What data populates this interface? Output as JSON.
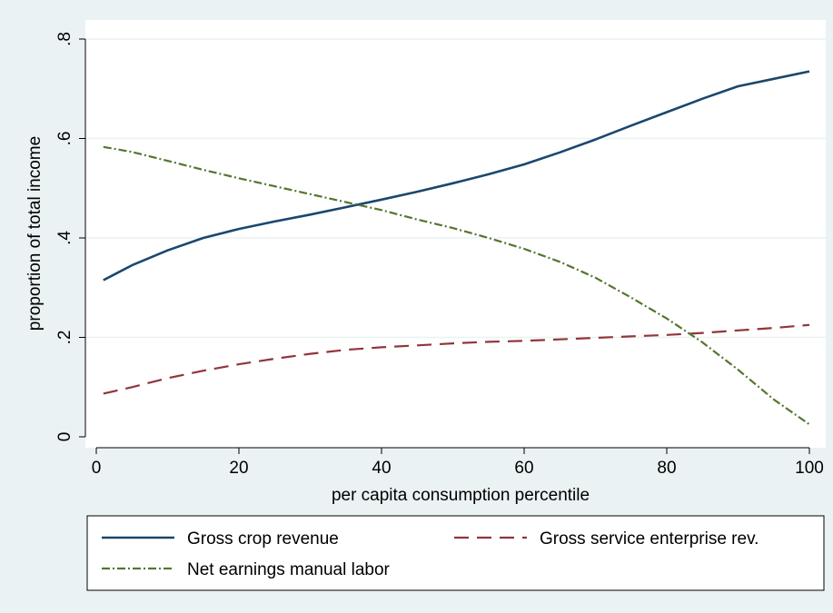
{
  "chart_data": {
    "type": "line",
    "title": "",
    "xlabel": "per capita consumption percentile",
    "ylabel": "proportion of total income",
    "xlim": [
      0,
      100
    ],
    "ylim": [
      0,
      0.8
    ],
    "xticks": [
      0,
      20,
      40,
      60,
      80,
      100
    ],
    "xtick_labels": [
      "0",
      "20",
      "40",
      "60",
      "80",
      "100"
    ],
    "yticks": [
      0,
      0.2,
      0.4,
      0.6,
      0.8
    ],
    "ytick_labels": [
      "0",
      ".2",
      ".4",
      ".6",
      ".8"
    ],
    "grid": true,
    "legend_position": "bottom",
    "colors": {
      "background_outer": "#eaf2f3",
      "plot_background": "#ffffff",
      "grid": "#eaf2f3"
    },
    "series": [
      {
        "name": "Gross crop revenue",
        "color": "#1a476f",
        "dash": "solid",
        "x": [
          1,
          5,
          10,
          15,
          20,
          25,
          30,
          35,
          40,
          45,
          50,
          55,
          60,
          65,
          70,
          75,
          80,
          85,
          90,
          95,
          100
        ],
        "y": [
          0.315,
          0.345,
          0.375,
          0.4,
          0.418,
          0.433,
          0.447,
          0.462,
          0.477,
          0.493,
          0.51,
          0.528,
          0.548,
          0.572,
          0.598,
          0.626,
          0.653,
          0.68,
          0.705,
          0.72,
          0.735
        ]
      },
      {
        "name": "Gross service enterprise rev.",
        "color": "#90353b",
        "dash": "dash",
        "x": [
          1,
          5,
          10,
          15,
          20,
          25,
          30,
          35,
          40,
          45,
          50,
          55,
          60,
          65,
          70,
          75,
          80,
          85,
          90,
          95,
          100
        ],
        "y": [
          0.087,
          0.1,
          0.118,
          0.133,
          0.146,
          0.157,
          0.167,
          0.175,
          0.18,
          0.184,
          0.188,
          0.191,
          0.193,
          0.196,
          0.199,
          0.202,
          0.205,
          0.209,
          0.214,
          0.219,
          0.225
        ]
      },
      {
        "name": "Net earnings manual labor",
        "color": "#55752f",
        "dash": "dash-dot",
        "x": [
          1,
          5,
          10,
          15,
          20,
          25,
          30,
          35,
          40,
          45,
          50,
          55,
          60,
          65,
          70,
          75,
          80,
          85,
          90,
          95,
          100
        ],
        "y": [
          0.583,
          0.573,
          0.555,
          0.537,
          0.52,
          0.504,
          0.488,
          0.472,
          0.456,
          0.437,
          0.42,
          0.4,
          0.378,
          0.352,
          0.32,
          0.28,
          0.238,
          0.19,
          0.135,
          0.075,
          0.025
        ]
      }
    ]
  }
}
